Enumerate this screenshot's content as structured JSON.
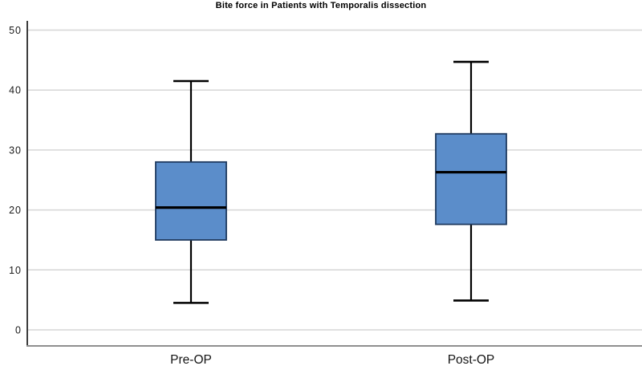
{
  "chart_data": {
    "type": "boxplot",
    "title": "Bite force in Patients with Temporalis dissection",
    "categories": [
      "Pre-OP",
      "Post-OP"
    ],
    "series": [
      {
        "name": "Pre-OP",
        "min": 4.5,
        "q1": 15.0,
        "median": 20.4,
        "q3": 28.0,
        "max": 41.5
      },
      {
        "name": "Post-OP",
        "min": 4.9,
        "q1": 17.6,
        "median": 26.3,
        "q3": 32.7,
        "max": 44.7
      }
    ],
    "xlabel": "",
    "ylabel": "",
    "ylim": [
      0,
      50
    ],
    "yticks": [
      0,
      10,
      20,
      30,
      40,
      50
    ],
    "grid": "horizontal",
    "legend": "none",
    "colors": {
      "box_fill": "#5b8dca",
      "box_border": "#1f3a5f",
      "median": "#000000",
      "whisker": "#000000",
      "gridline": "#d6d6d6",
      "axis_line": "#3d3d3d",
      "frame_bottom": "#8f8f8f",
      "text": "#1a1a1a",
      "background": "#ffffff"
    }
  }
}
